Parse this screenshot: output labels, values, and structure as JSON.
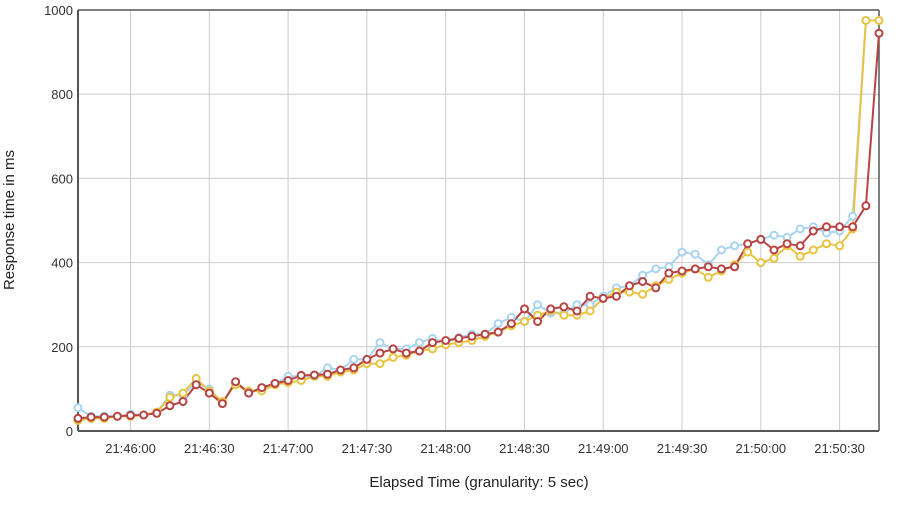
{
  "chart_data": {
    "type": "line",
    "xlabel": "Elapsed Time (granularity: 5 sec)",
    "ylabel": "Response time in ms",
    "ylim": [
      0,
      1000
    ],
    "yticks": [
      0,
      200,
      400,
      600,
      800,
      1000
    ],
    "xlim": [
      "21:45:40",
      "21:50:45"
    ],
    "xticks": [
      "21:46:00",
      "21:46:30",
      "21:47:00",
      "21:47:30",
      "21:48:00",
      "21:48:30",
      "21:49:00",
      "21:49:30",
      "21:50:00",
      "21:50:30"
    ],
    "grid": true,
    "x": [
      "21:45:40",
      "21:45:45",
      "21:45:50",
      "21:45:55",
      "21:46:00",
      "21:46:05",
      "21:46:10",
      "21:46:15",
      "21:46:20",
      "21:46:25",
      "21:46:30",
      "21:46:35",
      "21:46:40",
      "21:46:45",
      "21:46:50",
      "21:46:55",
      "21:47:00",
      "21:47:05",
      "21:47:10",
      "21:47:15",
      "21:47:20",
      "21:47:25",
      "21:47:30",
      "21:47:35",
      "21:47:40",
      "21:47:45",
      "21:47:50",
      "21:47:55",
      "21:48:00",
      "21:48:05",
      "21:48:10",
      "21:48:15",
      "21:48:20",
      "21:48:25",
      "21:48:30",
      "21:48:35",
      "21:48:40",
      "21:48:45",
      "21:48:50",
      "21:48:55",
      "21:49:00",
      "21:49:05",
      "21:49:10",
      "21:49:15",
      "21:49:20",
      "21:49:25",
      "21:49:30",
      "21:49:35",
      "21:49:40",
      "21:49:45",
      "21:49:50",
      "21:49:55",
      "21:50:00",
      "21:50:05",
      "21:50:10",
      "21:50:15",
      "21:50:20",
      "21:50:25",
      "21:50:30",
      "21:50:35",
      "21:50:40",
      "21:50:45"
    ],
    "series": [
      {
        "color": "#a9d4f0",
        "values": [
          55,
          35,
          35,
          35,
          40,
          38,
          45,
          85,
          85,
          115,
          100,
          68,
          115,
          90,
          100,
          112,
          130,
          130,
          130,
          150,
          145,
          170,
          170,
          210,
          195,
          195,
          210,
          220,
          210,
          222,
          230,
          230,
          255,
          270,
          260,
          300,
          280,
          280,
          300,
          300,
          320,
          340,
          345,
          370,
          385,
          390,
          425,
          420,
          395,
          430,
          440,
          445,
          455,
          465,
          460,
          480,
          485,
          470,
          475,
          510,
          975,
          975
        ]
      },
      {
        "color": "#e8c442",
        "values": [
          25,
          30,
          30,
          35,
          35,
          38,
          45,
          80,
          90,
          125,
          95,
          70,
          110,
          95,
          95,
          110,
          115,
          120,
          130,
          130,
          140,
          145,
          160,
          160,
          175,
          180,
          190,
          195,
          205,
          210,
          215,
          225,
          235,
          250,
          260,
          275,
          285,
          275,
          275,
          285,
          315,
          330,
          330,
          325,
          345,
          360,
          375,
          385,
          365,
          380,
          395,
          425,
          400,
          410,
          440,
          415,
          430,
          445,
          440,
          480,
          975,
          975
        ]
      },
      {
        "color": "#b74343",
        "values": [
          30,
          33,
          33,
          35,
          37,
          38,
          42,
          60,
          70,
          110,
          90,
          65,
          117,
          90,
          103,
          113,
          120,
          132,
          133,
          135,
          145,
          150,
          170,
          185,
          195,
          185,
          190,
          210,
          215,
          220,
          225,
          230,
          235,
          255,
          290,
          260,
          290,
          295,
          285,
          320,
          315,
          320,
          345,
          355,
          340,
          375,
          380,
          385,
          390,
          385,
          390,
          445,
          455,
          430,
          445,
          440,
          475,
          485,
          485,
          485,
          535,
          945
        ]
      }
    ]
  }
}
